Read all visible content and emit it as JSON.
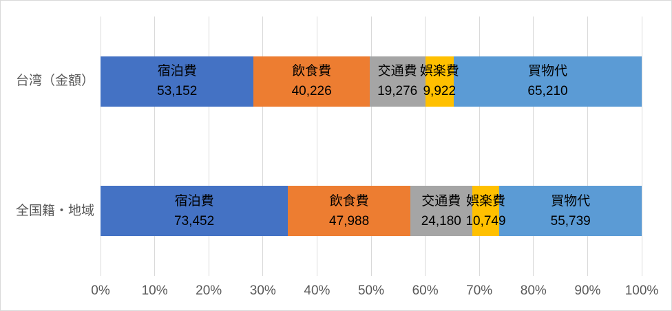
{
  "chart_data": {
    "type": "bar",
    "subtype": "horizontal-100-percent-stacked",
    "title": "",
    "categories": [
      "台湾（金額）",
      "全国籍・地域"
    ],
    "series": [
      {
        "name": "宿泊費",
        "color": "#4472C4",
        "values": [
          53152,
          73452
        ],
        "value_labels": [
          "53,152",
          "73,452"
        ]
      },
      {
        "name": "飲食費",
        "color": "#ED7D31",
        "values": [
          40226,
          47988
        ],
        "value_labels": [
          "40,226",
          "47,988"
        ]
      },
      {
        "name": "交通費",
        "color": "#A5A5A5",
        "values": [
          19276,
          24180
        ],
        "value_labels": [
          "19,276",
          "24,180"
        ]
      },
      {
        "name": "娯楽費",
        "color": "#FFC000",
        "values": [
          9922,
          10749
        ],
        "value_labels": [
          "9,922",
          "10,749"
        ]
      },
      {
        "name": "買物代",
        "color": "#5B9BD5",
        "values": [
          65210,
          55739
        ],
        "value_labels": [
          "65,210",
          "55,739"
        ]
      }
    ],
    "x_axis": {
      "ticks": [
        "0%",
        "10%",
        "20%",
        "30%",
        "40%",
        "50%",
        "60%",
        "70%",
        "80%",
        "90%",
        "100%"
      ],
      "range": [
        0,
        1
      ]
    },
    "grid": {
      "vertical": true
    },
    "legend_position": "none",
    "data_label_format": "series name above value"
  },
  "colors": {
    "gridline": "#D9D9D9",
    "chart_border": "#D9D9D9",
    "axis_text": "#595959",
    "data_label_text": "#000000",
    "background": "#FFFFFF"
  }
}
